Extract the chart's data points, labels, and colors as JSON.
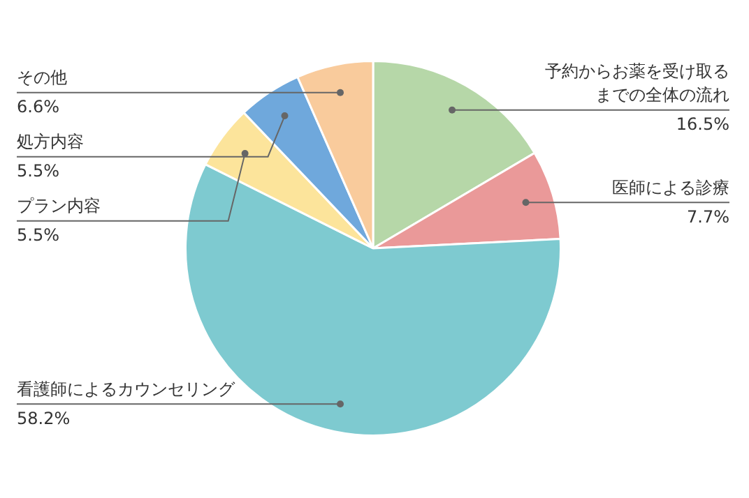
{
  "chart_data": {
    "type": "pie",
    "categories": [
      "予約からお薬を受け取るまでの全体の流れ",
      "医師による診療",
      "看護師によるカウンセリング",
      "プラン内容",
      "処方内容",
      "その他"
    ],
    "values": [
      16.5,
      7.7,
      58.2,
      5.5,
      5.5,
      6.6
    ],
    "value_labels": [
      "16.5%",
      "7.7%",
      "58.2%",
      "5.5%",
      "5.5%",
      "6.6%"
    ],
    "colors": [
      "#b6d7a8",
      "#ea9999",
      "#7ecad0",
      "#fce49b",
      "#6fa8dc",
      "#f9cb9c"
    ],
    "legend": false
  }
}
